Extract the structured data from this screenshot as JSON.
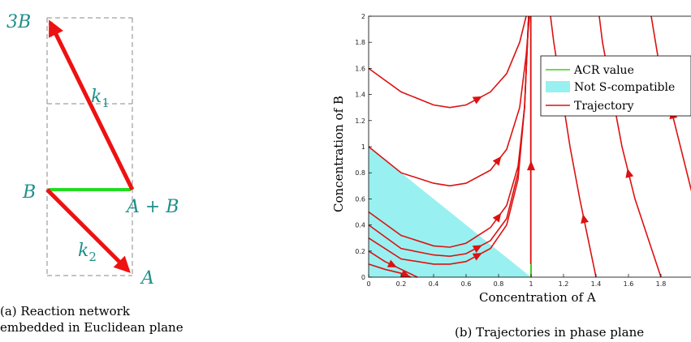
{
  "network": {
    "nodes": {
      "three_b": "3B",
      "b": "B",
      "a_plus_b": "A + B",
      "a": "A"
    },
    "rates": {
      "k1": "k",
      "k1_sub": "1",
      "k2": "k",
      "k2_sub": "2"
    },
    "caption": "(a) Reaction network embedded in Euclidean plane",
    "colors": {
      "reaction": "#ee1111",
      "acr_edge": "#22dd22",
      "label": "#1f8f8a",
      "grid": "#888888"
    }
  },
  "phase": {
    "caption": "(b) Trajectories in phase plane",
    "colors": {
      "acr": "#44cc22",
      "region": "#99f0f0",
      "trajectory": "#dd1111"
    }
  },
  "chart_data": {
    "type": "line",
    "xlabel": "Concentration of A",
    "ylabel": "Concentration of B",
    "xlim": [
      0,
      2
    ],
    "ylim": [
      0,
      2
    ],
    "xticks": [
      "0",
      "0.2",
      "0.4",
      "0.6",
      "0.8",
      "1",
      "1.2",
      "1.4",
      "1.6",
      "1.8"
    ],
    "yticks": [
      "0",
      "0.2",
      "0.4",
      "0.6",
      "0.8",
      "1",
      "1.2",
      "1.4",
      "1.6",
      "1.8",
      "2"
    ],
    "legend": {
      "placement": "top-right",
      "entries": [
        "ACR value",
        "Not S-compatible",
        "Trajectory"
      ]
    },
    "acr_value": {
      "x": 1
    },
    "region": {
      "polygon": [
        [
          0,
          0
        ],
        [
          1,
          0
        ],
        [
          0,
          1
        ]
      ]
    },
    "series": [
      {
        "curve": [
          [
            0,
            1.6
          ],
          [
            0.2,
            1.42
          ],
          [
            0.4,
            1.32
          ],
          [
            0.5,
            1.3
          ],
          [
            0.6,
            1.32
          ],
          [
            0.75,
            1.42
          ],
          [
            0.85,
            1.56
          ],
          [
            0.93,
            1.8
          ],
          [
            0.97,
            2.0
          ]
        ],
        "arrow_at": 0.72
      },
      {
        "curve": [
          [
            0,
            1.0
          ],
          [
            0.2,
            0.8
          ],
          [
            0.4,
            0.72
          ],
          [
            0.5,
            0.7
          ],
          [
            0.6,
            0.72
          ],
          [
            0.75,
            0.82
          ],
          [
            0.85,
            0.98
          ],
          [
            0.93,
            1.3
          ],
          [
            0.97,
            1.7
          ],
          [
            0.99,
            2.0
          ]
        ],
        "arrow_at": 0.75
      },
      {
        "curve": [
          [
            0,
            0.5
          ],
          [
            0.2,
            0.32
          ],
          [
            0.4,
            0.24
          ],
          [
            0.5,
            0.23
          ],
          [
            0.6,
            0.26
          ],
          [
            0.75,
            0.38
          ],
          [
            0.85,
            0.55
          ],
          [
            0.92,
            0.85
          ],
          [
            0.96,
            1.3
          ],
          [
            0.985,
            2.0
          ]
        ],
        "arrow_at": 0.77
      },
      {
        "curve": [
          [
            0,
            0.4
          ],
          [
            0.2,
            0.22
          ],
          [
            0.4,
            0.17
          ],
          [
            0.5,
            0.16
          ],
          [
            0.6,
            0.18
          ],
          [
            0.75,
            0.28
          ],
          [
            0.85,
            0.45
          ],
          [
            0.92,
            0.8
          ],
          [
            0.96,
            1.3
          ],
          [
            0.985,
            2.0
          ]
        ],
        "arrow_at": 0.7
      },
      {
        "curve": [
          [
            0,
            0.3
          ],
          [
            0.2,
            0.14
          ],
          [
            0.4,
            0.1
          ],
          [
            0.5,
            0.1
          ],
          [
            0.6,
            0.12
          ],
          [
            0.75,
            0.22
          ],
          [
            0.85,
            0.4
          ],
          [
            0.92,
            0.75
          ],
          [
            0.96,
            1.3
          ],
          [
            0.985,
            2.0
          ]
        ],
        "arrow_at": 0.62
      },
      {
        "curve": [
          [
            0,
            0.2
          ],
          [
            0.1,
            0.12
          ],
          [
            0.2,
            0.06
          ],
          [
            0.3,
            0.0
          ]
        ],
        "arrow_at": 0.18
      },
      {
        "curve": [
          [
            0,
            0.1
          ],
          [
            0.1,
            0.06
          ],
          [
            0.2,
            0.03
          ],
          [
            0.26,
            0.0
          ]
        ],
        "arrow_at": 0.2
      },
      {
        "curve": [
          [
            1.4,
            0.0
          ],
          [
            1.35,
            0.3
          ],
          [
            1.3,
            0.6
          ],
          [
            1.24,
            1.0
          ],
          [
            1.19,
            1.4
          ],
          [
            1.14,
            1.8
          ],
          [
            1.12,
            2.0
          ]
        ],
        "arrow_at": 1.3
      },
      {
        "curve": [
          [
            1.8,
            0.0
          ],
          [
            1.72,
            0.3
          ],
          [
            1.64,
            0.6
          ],
          [
            1.56,
            1.0
          ],
          [
            1.5,
            1.4
          ],
          [
            1.44,
            1.8
          ],
          [
            1.42,
            2.0
          ]
        ],
        "arrow_at": 1.64
      },
      {
        "curve": [
          [
            2.0,
            0.6
          ],
          [
            1.96,
            0.8
          ],
          [
            1.9,
            1.1
          ],
          [
            1.84,
            1.4
          ],
          [
            1.78,
            1.7
          ],
          [
            1.74,
            2.0
          ]
        ],
        "arrow_at": 1.86
      }
    ]
  }
}
